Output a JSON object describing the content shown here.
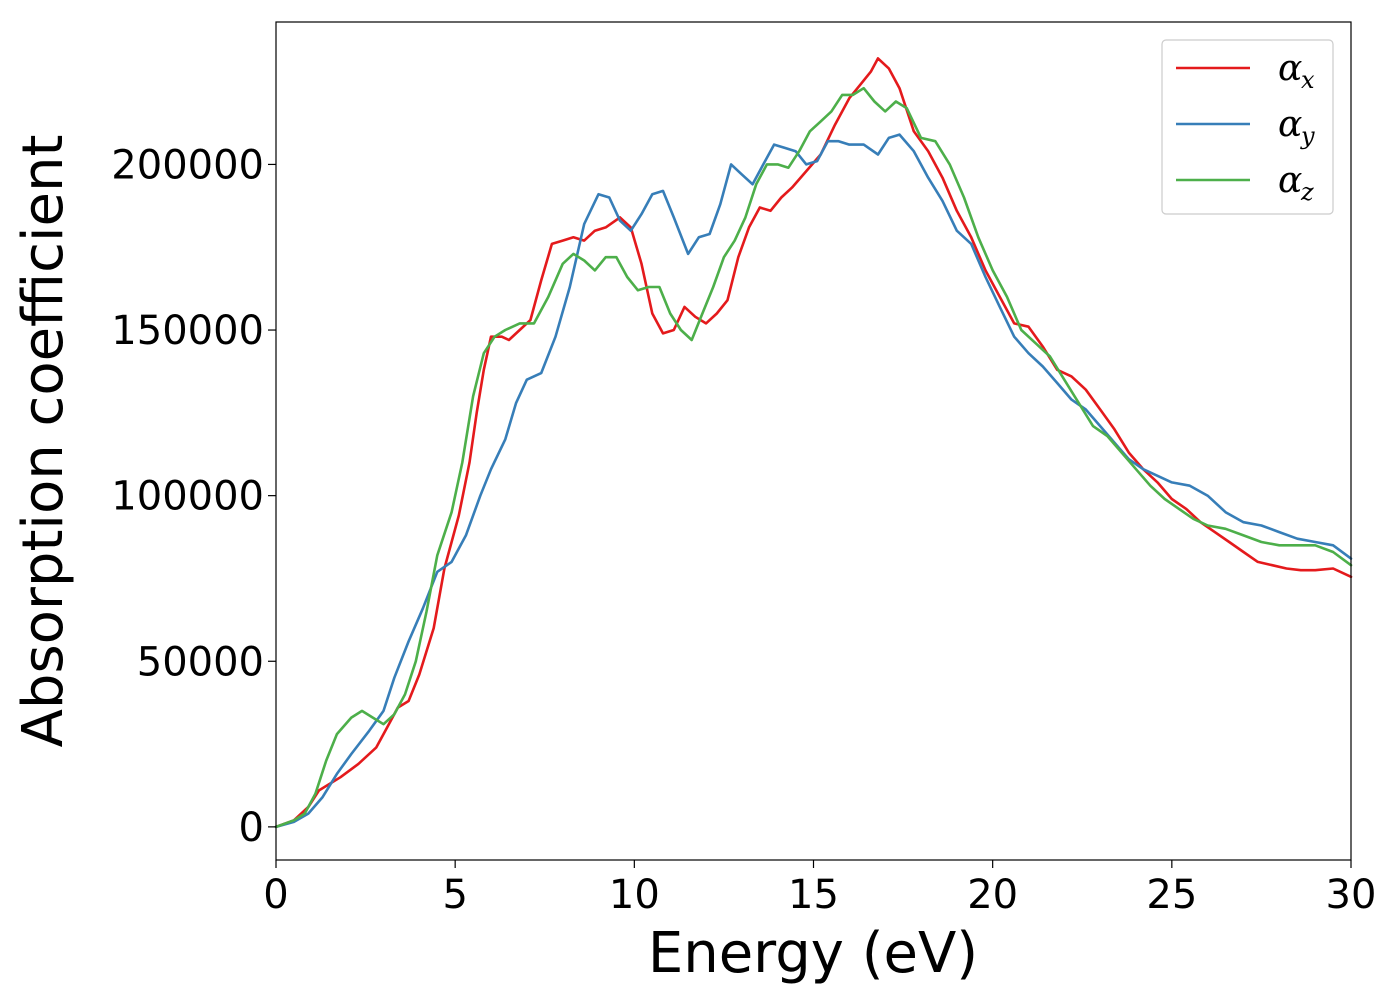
{
  "chart_data": {
    "type": "line",
    "title": "",
    "xlabel": "Energy (eV)",
    "ylabel": "Absorption coefficient",
    "xlim": [
      0,
      30
    ],
    "ylim": [
      -10000,
      243000
    ],
    "xticks": [
      0,
      5,
      10,
      15,
      20,
      25,
      30
    ],
    "xtick_labels": [
      "0",
      "5",
      "10",
      "15",
      "20",
      "25",
      "30"
    ],
    "yticks": [
      0,
      50000,
      100000,
      150000,
      200000
    ],
    "ytick_labels": [
      "0",
      "50000",
      "100000",
      "150000",
      "200000"
    ],
    "grid": false,
    "legend_placement": "top-right",
    "series": [
      {
        "name": "α",
        "subscript": "x",
        "color": "#e41a1c",
        "points": [
          [
            0,
            0
          ],
          [
            0.5,
            2000
          ],
          [
            0.9,
            6000
          ],
          [
            1.2,
            11000
          ],
          [
            1.8,
            15000
          ],
          [
            2.3,
            19000
          ],
          [
            2.8,
            24000
          ],
          [
            3.1,
            30000
          ],
          [
            3.4,
            36000
          ],
          [
            3.7,
            38000
          ],
          [
            4.0,
            46000
          ],
          [
            4.4,
            60000
          ],
          [
            4.7,
            78000
          ],
          [
            5.1,
            94000
          ],
          [
            5.4,
            110000
          ],
          [
            5.6,
            125000
          ],
          [
            5.8,
            138000
          ],
          [
            6.0,
            148000
          ],
          [
            6.3,
            148000
          ],
          [
            6.5,
            147000
          ],
          [
            6.8,
            150000
          ],
          [
            7.1,
            153000
          ],
          [
            7.4,
            165000
          ],
          [
            7.7,
            176000
          ],
          [
            8.0,
            177000
          ],
          [
            8.3,
            178000
          ],
          [
            8.6,
            177000
          ],
          [
            8.9,
            180000
          ],
          [
            9.2,
            181000
          ],
          [
            9.6,
            184000
          ],
          [
            9.9,
            181000
          ],
          [
            10.2,
            170000
          ],
          [
            10.5,
            155000
          ],
          [
            10.8,
            149000
          ],
          [
            11.1,
            150000
          ],
          [
            11.4,
            157000
          ],
          [
            11.7,
            154000
          ],
          [
            12.0,
            152000
          ],
          [
            12.3,
            155000
          ],
          [
            12.6,
            159000
          ],
          [
            12.9,
            172000
          ],
          [
            13.2,
            181000
          ],
          [
            13.5,
            187000
          ],
          [
            13.8,
            186000
          ],
          [
            14.1,
            190000
          ],
          [
            14.4,
            193000
          ],
          [
            14.8,
            198000
          ],
          [
            15.2,
            203000
          ],
          [
            15.6,
            212000
          ],
          [
            16.0,
            220000
          ],
          [
            16.3,
            224000
          ],
          [
            16.6,
            228000
          ],
          [
            16.8,
            232000
          ],
          [
            17.1,
            229000
          ],
          [
            17.4,
            223000
          ],
          [
            17.8,
            210000
          ],
          [
            18.2,
            204000
          ],
          [
            18.6,
            196000
          ],
          [
            19.0,
            186000
          ],
          [
            19.4,
            178000
          ],
          [
            19.8,
            168000
          ],
          [
            20.2,
            160000
          ],
          [
            20.6,
            152000
          ],
          [
            21.0,
            151000
          ],
          [
            21.4,
            145000
          ],
          [
            21.8,
            138000
          ],
          [
            22.2,
            136000
          ],
          [
            22.6,
            132000
          ],
          [
            23.0,
            126000
          ],
          [
            23.4,
            120000
          ],
          [
            23.8,
            113000
          ],
          [
            24.2,
            108000
          ],
          [
            24.6,
            104000
          ],
          [
            25.0,
            99000
          ],
          [
            25.4,
            96000
          ],
          [
            25.8,
            92000
          ],
          [
            26.2,
            89000
          ],
          [
            26.6,
            86000
          ],
          [
            27.0,
            83000
          ],
          [
            27.4,
            80000
          ],
          [
            27.8,
            79000
          ],
          [
            28.2,
            78000
          ],
          [
            28.6,
            77500
          ],
          [
            29.0,
            77500
          ],
          [
            29.5,
            78000
          ],
          [
            30,
            75500
          ]
        ]
      },
      {
        "name": "α",
        "subscript": "y",
        "color": "#377eb8",
        "points": [
          [
            0,
            0
          ],
          [
            0.5,
            1500
          ],
          [
            0.9,
            4000
          ],
          [
            1.3,
            9000
          ],
          [
            1.7,
            16000
          ],
          [
            2.1,
            22000
          ],
          [
            2.6,
            29000
          ],
          [
            3.0,
            35000
          ],
          [
            3.3,
            45000
          ],
          [
            3.7,
            56000
          ],
          [
            4.1,
            66000
          ],
          [
            4.5,
            77000
          ],
          [
            4.9,
            80000
          ],
          [
            5.3,
            88000
          ],
          [
            5.7,
            100000
          ],
          [
            6.0,
            108000
          ],
          [
            6.4,
            117000
          ],
          [
            6.7,
            128000
          ],
          [
            7.0,
            135000
          ],
          [
            7.4,
            137000
          ],
          [
            7.8,
            148000
          ],
          [
            8.2,
            163000
          ],
          [
            8.6,
            182000
          ],
          [
            9.0,
            191000
          ],
          [
            9.3,
            190000
          ],
          [
            9.6,
            183000
          ],
          [
            9.9,
            180000
          ],
          [
            10.2,
            185000
          ],
          [
            10.5,
            191000
          ],
          [
            10.8,
            192000
          ],
          [
            11.1,
            184000
          ],
          [
            11.5,
            173000
          ],
          [
            11.8,
            178000
          ],
          [
            12.1,
            179000
          ],
          [
            12.4,
            188000
          ],
          [
            12.7,
            200000
          ],
          [
            13.0,
            197000
          ],
          [
            13.3,
            194000
          ],
          [
            13.6,
            200000
          ],
          [
            13.9,
            206000
          ],
          [
            14.2,
            205000
          ],
          [
            14.5,
            204000
          ],
          [
            14.8,
            200000
          ],
          [
            15.1,
            201000
          ],
          [
            15.4,
            207000
          ],
          [
            15.7,
            207000
          ],
          [
            16.0,
            206000
          ],
          [
            16.4,
            206000
          ],
          [
            16.8,
            203000
          ],
          [
            17.1,
            208000
          ],
          [
            17.4,
            209000
          ],
          [
            17.8,
            204000
          ],
          [
            18.2,
            196000
          ],
          [
            18.6,
            189000
          ],
          [
            19.0,
            180000
          ],
          [
            19.4,
            176000
          ],
          [
            19.8,
            166000
          ],
          [
            20.2,
            157000
          ],
          [
            20.6,
            148000
          ],
          [
            21.0,
            143000
          ],
          [
            21.4,
            139000
          ],
          [
            21.8,
            134000
          ],
          [
            22.2,
            129000
          ],
          [
            22.6,
            126000
          ],
          [
            23.0,
            121000
          ],
          [
            23.4,
            116000
          ],
          [
            23.8,
            111000
          ],
          [
            24.2,
            108000
          ],
          [
            24.6,
            106000
          ],
          [
            25.0,
            104000
          ],
          [
            25.5,
            103000
          ],
          [
            26.0,
            100000
          ],
          [
            26.5,
            95000
          ],
          [
            27.0,
            92000
          ],
          [
            27.5,
            91000
          ],
          [
            28.0,
            89000
          ],
          [
            28.5,
            87000
          ],
          [
            29.0,
            86000
          ],
          [
            29.5,
            85000
          ],
          [
            30,
            81000
          ]
        ]
      },
      {
        "name": "α",
        "subscript": "z",
        "color": "#4daf4a",
        "points": [
          [
            0,
            0
          ],
          [
            0.5,
            2000
          ],
          [
            0.8,
            4000
          ],
          [
            1.1,
            10000
          ],
          [
            1.4,
            20000
          ],
          [
            1.7,
            28000
          ],
          [
            2.1,
            33000
          ],
          [
            2.4,
            35000
          ],
          [
            2.7,
            33000
          ],
          [
            3.0,
            31000
          ],
          [
            3.3,
            34000
          ],
          [
            3.6,
            40000
          ],
          [
            3.9,
            50000
          ],
          [
            4.2,
            65000
          ],
          [
            4.5,
            82000
          ],
          [
            4.9,
            95000
          ],
          [
            5.2,
            110000
          ],
          [
            5.5,
            130000
          ],
          [
            5.8,
            143000
          ],
          [
            6.1,
            148000
          ],
          [
            6.4,
            150000
          ],
          [
            6.8,
            152000
          ],
          [
            7.2,
            152000
          ],
          [
            7.6,
            160000
          ],
          [
            8.0,
            170000
          ],
          [
            8.3,
            173000
          ],
          [
            8.6,
            171000
          ],
          [
            8.9,
            168000
          ],
          [
            9.2,
            172000
          ],
          [
            9.5,
            172000
          ],
          [
            9.8,
            166000
          ],
          [
            10.1,
            162000
          ],
          [
            10.4,
            163000
          ],
          [
            10.7,
            163000
          ],
          [
            11.0,
            155000
          ],
          [
            11.3,
            150000
          ],
          [
            11.6,
            147000
          ],
          [
            11.9,
            155000
          ],
          [
            12.2,
            163000
          ],
          [
            12.5,
            172000
          ],
          [
            12.8,
            177000
          ],
          [
            13.1,
            184000
          ],
          [
            13.4,
            194000
          ],
          [
            13.7,
            200000
          ],
          [
            14.0,
            200000
          ],
          [
            14.3,
            199000
          ],
          [
            14.6,
            204000
          ],
          [
            14.9,
            210000
          ],
          [
            15.2,
            213000
          ],
          [
            15.5,
            216000
          ],
          [
            15.8,
            221000
          ],
          [
            16.1,
            221000
          ],
          [
            16.4,
            223000
          ],
          [
            16.7,
            219000
          ],
          [
            17.0,
            216000
          ],
          [
            17.3,
            219000
          ],
          [
            17.6,
            217000
          ],
          [
            18.0,
            208000
          ],
          [
            18.4,
            207000
          ],
          [
            18.8,
            200000
          ],
          [
            19.2,
            190000
          ],
          [
            19.6,
            178000
          ],
          [
            20.0,
            168000
          ],
          [
            20.4,
            160000
          ],
          [
            20.8,
            150000
          ],
          [
            21.2,
            146000
          ],
          [
            21.6,
            142000
          ],
          [
            22.0,
            135000
          ],
          [
            22.4,
            128000
          ],
          [
            22.8,
            121000
          ],
          [
            23.2,
            118000
          ],
          [
            23.6,
            113000
          ],
          [
            24.0,
            108000
          ],
          [
            24.4,
            103000
          ],
          [
            24.8,
            99000
          ],
          [
            25.2,
            96000
          ],
          [
            25.6,
            93000
          ],
          [
            26.0,
            91000
          ],
          [
            26.5,
            90000
          ],
          [
            27.0,
            88000
          ],
          [
            27.5,
            86000
          ],
          [
            28.0,
            85000
          ],
          [
            28.5,
            85000
          ],
          [
            29.0,
            85000
          ],
          [
            29.5,
            83000
          ],
          [
            30,
            79000
          ]
        ]
      }
    ]
  }
}
